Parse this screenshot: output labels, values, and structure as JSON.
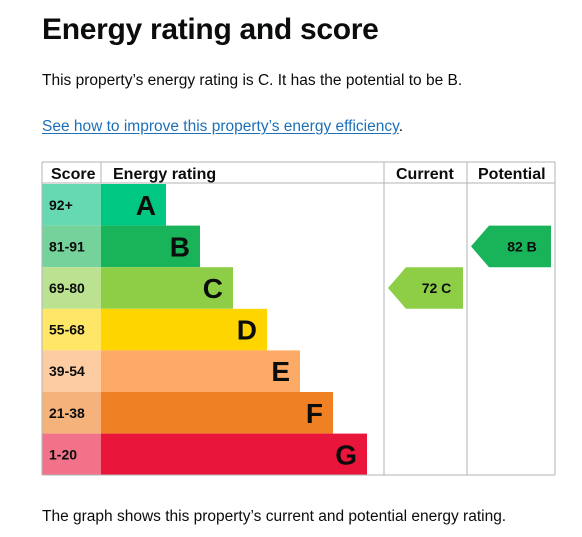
{
  "page": {
    "title": "Energy rating and score",
    "intro": "This property’s energy rating is C. It has the potential to be B.",
    "link_text": "See how to improve this property’s energy efficiency",
    "link_suffix": ".",
    "caption": "The graph shows this property’s current and potential energy rating."
  },
  "chart_data": {
    "type": "table",
    "headers": {
      "score": "Score",
      "energy_rating": "Energy rating",
      "current": "Current",
      "potential": "Potential"
    },
    "bands": [
      {
        "score": "92+",
        "letter": "A",
        "color": "#00c781",
        "score_bg": "#66d9b3"
      },
      {
        "score": "81-91",
        "letter": "B",
        "color": "#19b459",
        "score_bg": "#75d29b"
      },
      {
        "score": "69-80",
        "letter": "C",
        "color": "#8dce46",
        "score_bg": "#bbe290"
      },
      {
        "score": "55-68",
        "letter": "D",
        "color": "#ffd500",
        "score_bg": "#ffe666"
      },
      {
        "score": "39-54",
        "letter": "E",
        "color": "#fcaa65",
        "score_bg": "#fdcca3"
      },
      {
        "score": "21-38",
        "letter": "F",
        "color": "#ef8023",
        "score_bg": "#f5b37b"
      },
      {
        "score": "1-20",
        "letter": "G",
        "color": "#e9153b",
        "score_bg": "#f27389"
      }
    ],
    "current": {
      "value": 72,
      "letter": "C",
      "label": "72 C",
      "color": "#8dce46"
    },
    "potential": {
      "value": 82,
      "letter": "B",
      "label": "82 B",
      "color": "#19b459"
    },
    "grid_color": "#b1b4b6"
  }
}
